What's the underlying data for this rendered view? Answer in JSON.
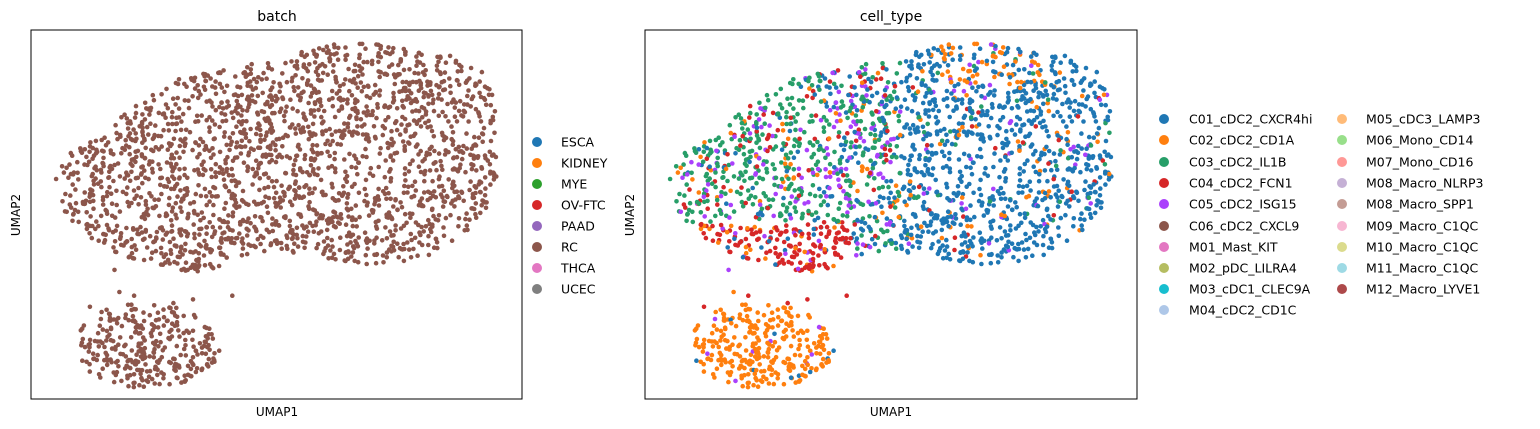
{
  "chart_data": [
    {
      "type": "scatter",
      "title": "batch",
      "xlabel": "UMAP1",
      "ylabel": "UMAP2",
      "xticks": [],
      "yticks": [],
      "grid": false,
      "legend_position": "right",
      "legend_columns": 1,
      "legend": [
        {
          "name": "ESCA",
          "color": "#1f77b4"
        },
        {
          "name": "KIDNEY",
          "color": "#ff7f0e"
        },
        {
          "name": "MYE",
          "color": "#2ca02c"
        },
        {
          "name": "OV-FTC",
          "color": "#d62728"
        },
        {
          "name": "PAAD",
          "color": "#9467bd"
        },
        {
          "name": "RC",
          "color": "#8c564b"
        },
        {
          "name": "THCA",
          "color": "#e377c2"
        },
        {
          "name": "UCEC",
          "color": "#7f7f7f"
        }
      ],
      "point_color": "#8c564b",
      "n_points": 2400
    },
    {
      "type": "scatter",
      "title": "cell_type",
      "xlabel": "UMAP1",
      "ylabel": "UMAP2",
      "xticks": [],
      "yticks": [],
      "grid": false,
      "legend_position": "right",
      "legend_columns": 2,
      "legend": [
        {
          "name": "C01_cDC2_CXCR4hi",
          "color": "#1f77b4"
        },
        {
          "name": "C02_cDC2_CD1A",
          "color": "#ff7f0e"
        },
        {
          "name": "C03_cDC2_IL1B",
          "color": "#279e68"
        },
        {
          "name": "C04_cDC2_FCN1",
          "color": "#d62728"
        },
        {
          "name": "C05_cDC2_ISG15",
          "color": "#aa40fc"
        },
        {
          "name": "C06_cDC2_CXCL9",
          "color": "#8c564b"
        },
        {
          "name": "M01_Mast_KIT",
          "color": "#e377c2"
        },
        {
          "name": "M02_pDC_LILRA4",
          "color": "#b5bd61"
        },
        {
          "name": "M03_cDC1_CLEC9A",
          "color": "#17becf"
        },
        {
          "name": "M04_cDC2_CD1C",
          "color": "#aec7e8"
        },
        {
          "name": "M05_cDC3_LAMP3",
          "color": "#ffbb78"
        },
        {
          "name": "M06_Mono_CD14",
          "color": "#98df8a"
        },
        {
          "name": "M07_Mono_CD16",
          "color": "#ff9896"
        },
        {
          "name": "M08_Macro_NLRP3",
          "color": "#c5b0d5"
        },
        {
          "name": "M08_Macro_SPP1",
          "color": "#c49c94"
        },
        {
          "name": "M09_Macro_C1QC",
          "color": "#f7b6d2"
        },
        {
          "name": "M10_Macro_C1QC",
          "color": "#dbdb8d"
        },
        {
          "name": "M11_Macro_C1QC",
          "color": "#9edae5"
        },
        {
          "name": "M12_Macro_LYVE1",
          "color": "#ad494a"
        }
      ],
      "n_points": 2400
    }
  ]
}
